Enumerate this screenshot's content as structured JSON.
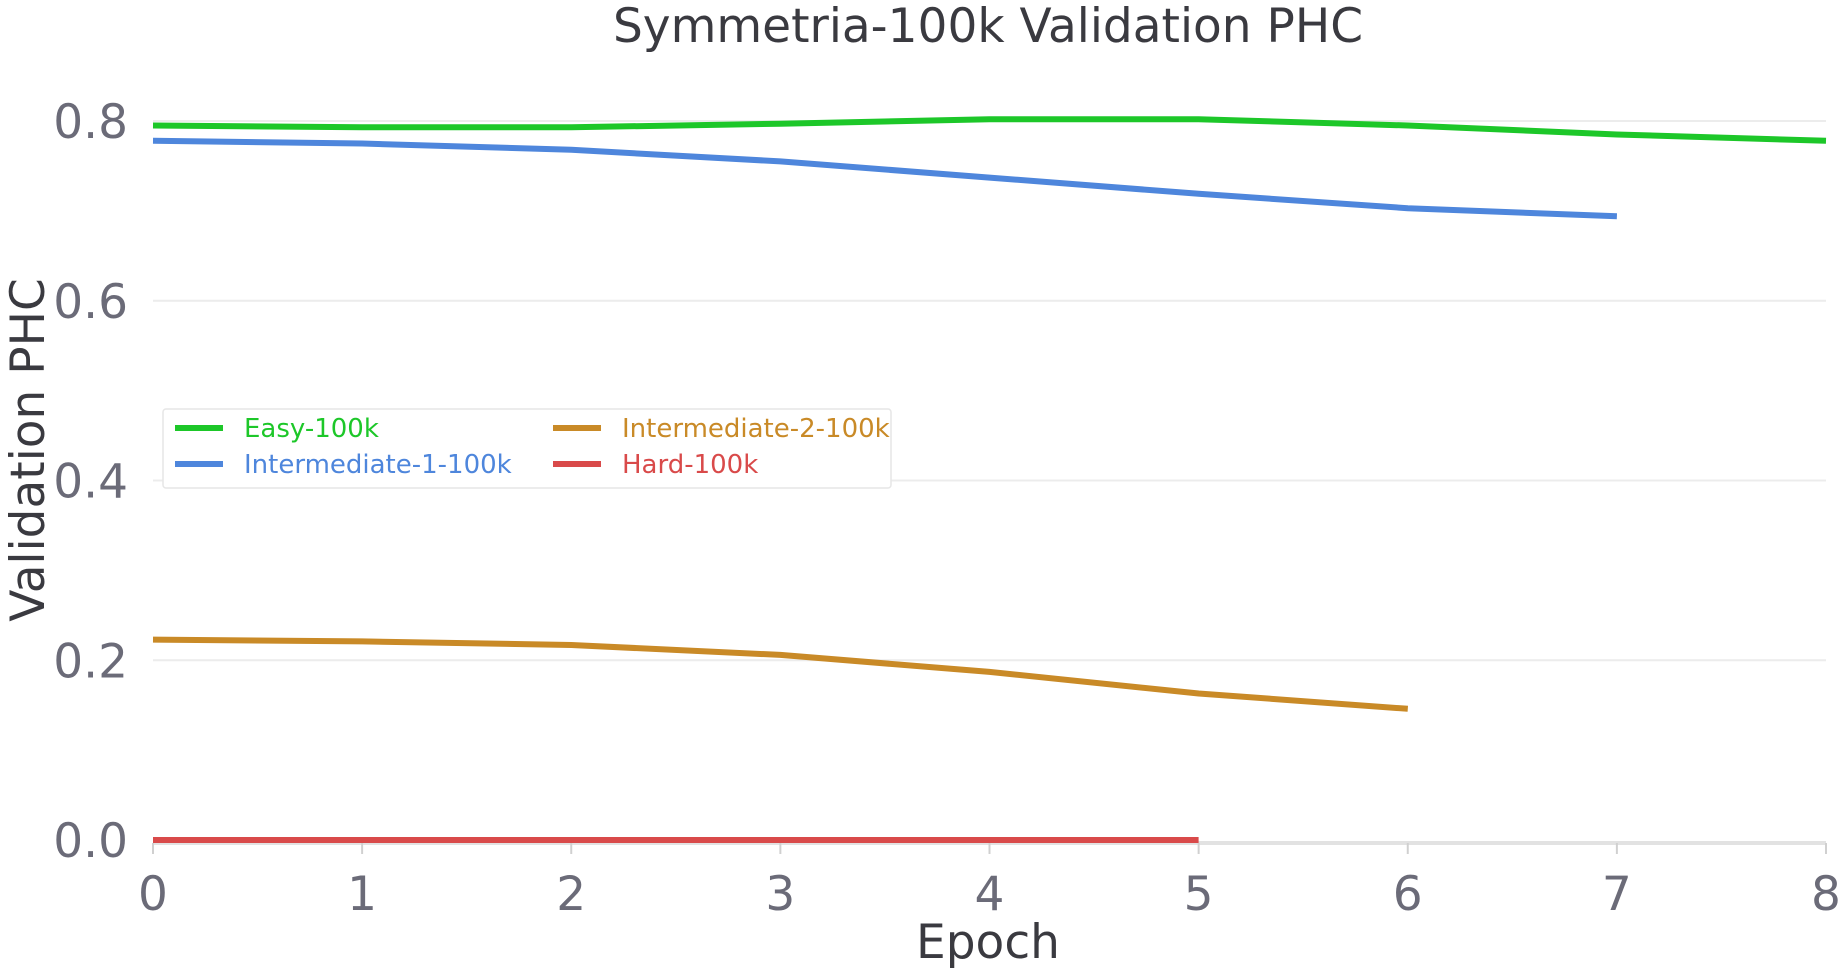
{
  "chart_data": {
    "type": "line",
    "title": "Symmetria-100k Validation PHC",
    "xlabel": "Epoch",
    "ylabel": "Validation PHC",
    "xlim": [
      0,
      8
    ],
    "ylim": [
      0.0,
      0.8
    ],
    "x_ticks": [
      "0",
      "1",
      "2",
      "3",
      "4",
      "5",
      "6",
      "7",
      "8"
    ],
    "y_ticks": [
      "0.0",
      "0.2",
      "0.4",
      "0.6",
      "0.8"
    ],
    "grid": true,
    "legend_position": "center-left",
    "series": [
      {
        "name": "Easy-100k",
        "color": "#1dc729",
        "x": [
          0,
          1,
          2,
          3,
          4,
          5,
          6,
          7,
          8
        ],
        "y": [
          0.795,
          0.793,
          0.793,
          0.797,
          0.802,
          0.802,
          0.795,
          0.785,
          0.778
        ]
      },
      {
        "name": "Intermediate-1-100k",
        "color": "#4e86dc",
        "x": [
          0,
          1,
          2,
          3,
          4,
          5,
          6,
          7
        ],
        "y": [
          0.778,
          0.775,
          0.768,
          0.755,
          0.737,
          0.719,
          0.703,
          0.694
        ]
      },
      {
        "name": "Intermediate-2-100k",
        "color": "#c98a27",
        "x": [
          0,
          1,
          2,
          3,
          4,
          5,
          6
        ],
        "y": [
          0.223,
          0.221,
          0.217,
          0.206,
          0.187,
          0.163,
          0.146
        ]
      },
      {
        "name": "Hard-100k",
        "color": "#d94a4a",
        "x": [
          0,
          1,
          2,
          3,
          4,
          5
        ],
        "y": [
          0.0,
          0.0,
          0.0,
          0.0,
          0.0,
          0.0
        ]
      }
    ]
  }
}
